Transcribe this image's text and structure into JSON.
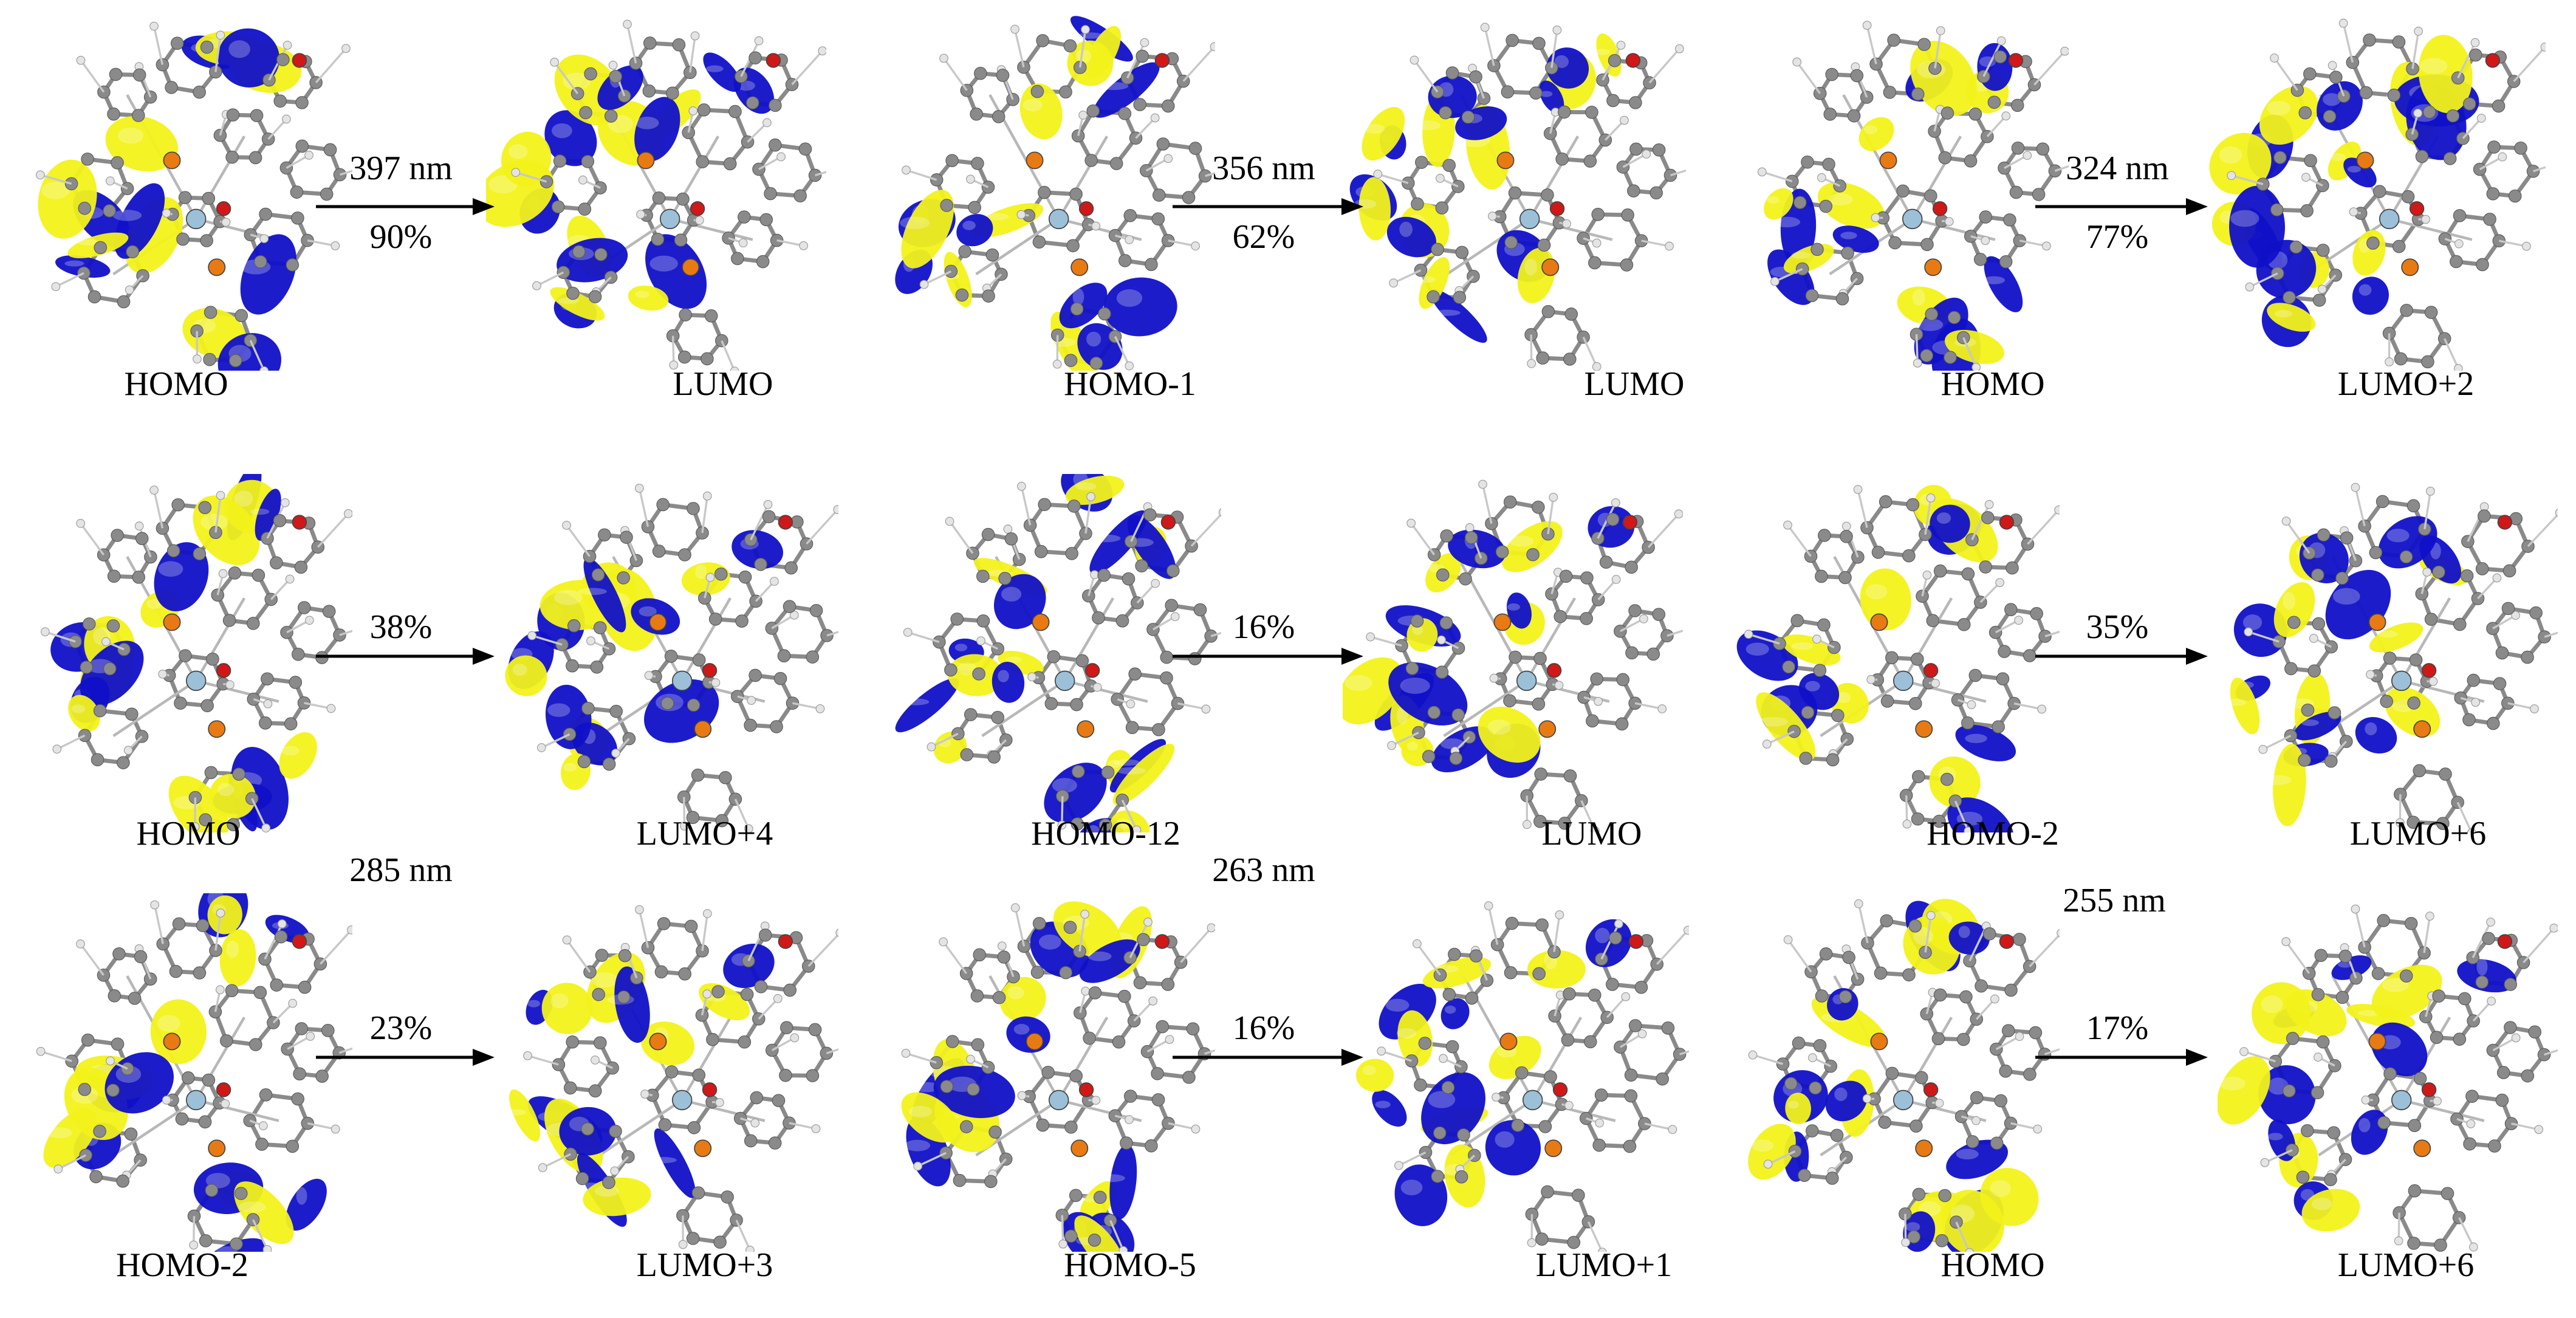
{
  "rows": [
    {
      "molecules": [
        "HOMO",
        "LUMO",
        "HOMO-1",
        "LUMO",
        "HOMO",
        "LUMO+2"
      ],
      "transitions": [
        {
          "nm": "397 nm",
          "pct": "90%"
        },
        {
          "nm": "356 nm",
          "pct": "62%"
        },
        {
          "nm": "324 nm",
          "pct": "77%"
        }
      ]
    },
    {
      "molecules": [
        "HOMO",
        "LUMO+4",
        "HOMO-12",
        "LUMO",
        "HOMO-2",
        "LUMO+6"
      ],
      "transitions": [
        {
          "nm": "285 nm",
          "pct": "38%"
        },
        {
          "nm": "263 nm",
          "pct": "16%"
        },
        {
          "nm": "255 nm",
          "pct": "35%"
        }
      ]
    },
    {
      "molecules": [
        "HOMO-2",
        "LUMO+3",
        "HOMO-5",
        "LUMO+1",
        "HOMO",
        "LUMO+6"
      ],
      "transitions": [
        {
          "nm": "",
          "pct": "23%"
        },
        {
          "nm": "",
          "pct": "16%"
        },
        {
          "nm": "",
          "pct": "17%"
        }
      ]
    }
  ],
  "colors": {
    "lobe_positive": "#1010c8",
    "lobe_negative": "#f2f21a",
    "carbon": "#8a8a8a",
    "hydrogen": "#e4e4e4",
    "oxygen": "#d01818",
    "phosphorus": "#e87a14",
    "metal": "#9cc0d8"
  }
}
